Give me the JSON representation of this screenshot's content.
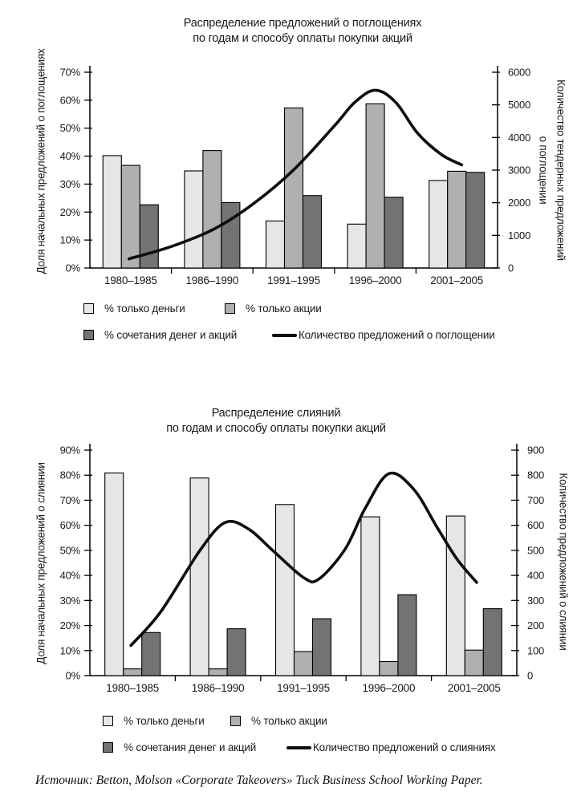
{
  "page": {
    "source_note": "Источник: Betton, Molson «Corporate Takeovers» Tuck Business School Working Paper."
  },
  "colors": {
    "bar_light": "#e6e6e6",
    "bar_medium": "#b0b0b0",
    "bar_dark": "#737373",
    "bar_border": "#000000",
    "line": "#0d0d0d",
    "axis": "#000000",
    "text": "#1a1a1a"
  },
  "chart_data": [
    {
      "type": "bar+line",
      "title_line1": "Распределение предложений о поглощениях",
      "title_line2": "по годам и способу оплаты покупки акций",
      "categories": [
        "1980–1985",
        "1986–1990",
        "1991–1995",
        "1996–2000",
        "2001–2005"
      ],
      "series": [
        {
          "name": "% только деньги",
          "values": [
            40.2,
            34.7,
            16.8,
            15.7,
            31.3
          ]
        },
        {
          "name": "% только акции",
          "values": [
            36.7,
            42.0,
            57.2,
            58.7,
            34.6
          ]
        },
        {
          "name": "% сочетания денег и акций",
          "values": [
            22.6,
            23.4,
            25.9,
            25.3,
            34.2
          ]
        }
      ],
      "line_series": {
        "name": "Количество предложений о поглощении",
        "axis": "right",
        "points": [
          [
            0.48,
            280
          ],
          [
            1.0,
            660
          ],
          [
            1.52,
            1190
          ],
          [
            2.0,
            1960
          ],
          [
            2.5,
            3010
          ],
          [
            3.0,
            4360
          ],
          [
            3.25,
            5080
          ],
          [
            3.5,
            5450
          ],
          [
            3.75,
            5080
          ],
          [
            4.02,
            4130
          ],
          [
            4.31,
            3480
          ],
          [
            4.56,
            3160
          ]
        ]
      },
      "left_axis": {
        "label": "Доля начальных предложений о поглощениях",
        "min": 0,
        "max": 70,
        "step": 10,
        "unit": "%",
        "tick_labels": [
          "0%",
          "10%",
          "20%",
          "30%",
          "40%",
          "50%",
          "60%",
          "70%"
        ]
      },
      "right_axis": {
        "label_lines": [
          "Количество тендерных предложений",
          "о поглощении"
        ],
        "min": 0,
        "max": 6000,
        "step": 1000,
        "tick_labels": [
          "0",
          "1000",
          "2000",
          "3000",
          "4000",
          "5000",
          "6000"
        ]
      },
      "legend_position": "bottom",
      "grid": false
    },
    {
      "type": "bar+line",
      "title_line1": "Распределение слияний",
      "title_line2": "по годам и способу оплаты покупки акций",
      "categories": [
        "1980–1985",
        "1986–1990",
        "1991–1995",
        "1996–2000",
        "2001–2005"
      ],
      "series": [
        {
          "name": "% только деньги",
          "values": [
            80.9,
            78.9,
            68.3,
            63.4,
            63.7
          ]
        },
        {
          "name": "% только акции",
          "values": [
            2.7,
            2.7,
            9.6,
            5.6,
            10.2
          ]
        },
        {
          "name": "% сочетания денег и акций",
          "values": [
            17.2,
            18.7,
            22.7,
            32.3,
            26.7
          ]
        }
      ],
      "line_series": {
        "name": "Количество предложений о слияниях",
        "axis": "right",
        "points": [
          [
            0.48,
            120
          ],
          [
            0.83,
            255
          ],
          [
            1.3,
            505
          ],
          [
            1.59,
            612
          ],
          [
            1.86,
            585
          ],
          [
            2.14,
            500
          ],
          [
            2.5,
            392
          ],
          [
            2.68,
            385
          ],
          [
            2.99,
            505
          ],
          [
            3.22,
            665
          ],
          [
            3.5,
            806
          ],
          [
            3.79,
            745
          ],
          [
            4.07,
            590
          ],
          [
            4.3,
            465
          ],
          [
            4.53,
            372
          ]
        ]
      },
      "left_axis": {
        "label": "Доля начальных предложений о слиянии",
        "min": 0,
        "max": 90,
        "step": 10,
        "unit": "%",
        "tick_labels": [
          "0%",
          "10%",
          "20%",
          "30%",
          "40%",
          "50%",
          "60%",
          "70%",
          "80%",
          "90%"
        ]
      },
      "right_axis": {
        "label_lines": [
          "Количество предложений о слиянии"
        ],
        "min": 0,
        "max": 900,
        "step": 100,
        "tick_labels": [
          "0",
          "100",
          "200",
          "300",
          "400",
          "500",
          "600",
          "700",
          "800",
          "900"
        ]
      },
      "legend_position": "bottom",
      "grid": false
    }
  ]
}
